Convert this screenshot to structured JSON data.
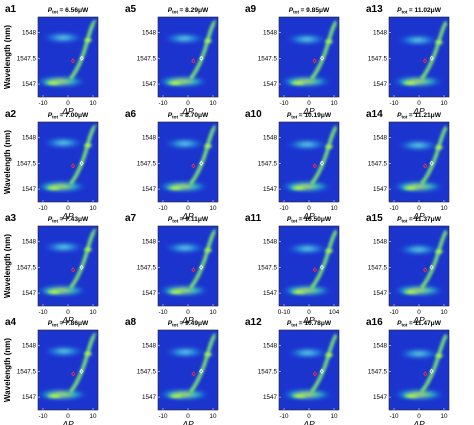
{
  "figure": {
    "common_ylabel": "Wavelength (nm)",
    "common_xlabel": "ΔP"
  },
  "chart_data": [
    {
      "type": "heatmap",
      "panel": "a1",
      "title_symbol": "P",
      "title_sub": "tot",
      "title_value": "= 6.56μW",
      "xlabel": "ΔP",
      "ylabel": "Wavelength (nm)",
      "xticks": [
        "-10",
        "0",
        "10"
      ],
      "yticks": [
        "1548",
        "1547.5",
        "1547"
      ],
      "ylim": [
        1546.75,
        1548.3
      ],
      "colormap": "jet-like (dark blue to yellow)",
      "colorbar": false
    },
    {
      "type": "heatmap",
      "panel": "a2",
      "title_symbol": "P",
      "title_sub": "tot",
      "title_value": "= 7.00μW",
      "xlabel": "ΔP",
      "ylabel": "Wavelength (nm)",
      "xticks": [
        "-10",
        "0",
        "10"
      ],
      "yticks": [
        "1548",
        "1547.5",
        "1547"
      ],
      "ylim": [
        1546.75,
        1548.3
      ],
      "colormap": "jet-like (dark blue to yellow)",
      "colorbar": false
    },
    {
      "type": "heatmap",
      "panel": "a3",
      "title_symbol": "P",
      "title_sub": "tot",
      "title_value": "= 7.43μW",
      "xlabel": "ΔP",
      "ylabel": "Wavelength (nm)",
      "xticks": [
        "-10",
        "0",
        "10"
      ],
      "yticks": [
        "1548",
        "1547.5",
        "1547"
      ],
      "ylim": [
        1546.75,
        1548.3
      ],
      "colormap": "jet-like (dark blue to yellow)",
      "colorbar": false
    },
    {
      "type": "heatmap",
      "panel": "a4",
      "title_symbol": "P",
      "title_sub": "tot",
      "title_value": "= 7.86μW",
      "xlabel": "ΔP",
      "ylabel": "Wavelength (nm)",
      "xticks": [
        "-10",
        "0",
        "10"
      ],
      "yticks": [
        "1548",
        "1547.5",
        "1547"
      ],
      "ylim": [
        1546.75,
        1548.3
      ],
      "colormap": "jet-like (dark blue to yellow)",
      "colorbar": false
    },
    {
      "type": "heatmap",
      "panel": "a5",
      "title_symbol": "P",
      "title_sub": "tot",
      "title_value": "= 8.29μW",
      "xlabel": "ΔP",
      "ylabel": "",
      "xticks": [
        "-10",
        "0",
        "10"
      ],
      "yticks": [
        "1548",
        "1547.5",
        "1547"
      ],
      "ylim": [
        1546.75,
        1548.3
      ],
      "colormap": "jet-like (dark blue to yellow)",
      "colorbar": false
    },
    {
      "type": "heatmap",
      "panel": "a6",
      "title_symbol": "P",
      "title_sub": "tot",
      "title_value": "= 8.70μW",
      "xlabel": "ΔP",
      "ylabel": "",
      "xticks": [
        "-10",
        "0",
        "10"
      ],
      "yticks": [
        "1548",
        "1547.5",
        "1547"
      ],
      "ylim": [
        1546.75,
        1548.3
      ],
      "colormap": "jet-like (dark blue to yellow)",
      "colorbar": false
    },
    {
      "type": "heatmap",
      "panel": "a7",
      "title_symbol": "P",
      "title_sub": "tot",
      "title_value": "= 9.11μW",
      "xlabel": "ΔP",
      "ylabel": "",
      "xticks": [
        "-10",
        "0",
        "10"
      ],
      "yticks": [
        "1548",
        "1547.5",
        "1547"
      ],
      "ylim": [
        1546.75,
        1548.3
      ],
      "colormap": "jet-like (dark blue to yellow)",
      "colorbar": false
    },
    {
      "type": "heatmap",
      "panel": "a8",
      "title_symbol": "P",
      "title_sub": "tot",
      "title_value": "= 9.49μW",
      "xlabel": "ΔP",
      "ylabel": "",
      "xticks": [
        "-10",
        "0",
        "10"
      ],
      "yticks": [
        "1548",
        "1547.5",
        "1547"
      ],
      "ylim": [
        1546.75,
        1548.3
      ],
      "colormap": "jet-like (dark blue to yellow)",
      "colorbar": false
    },
    {
      "type": "heatmap",
      "panel": "a9",
      "title_symbol": "P",
      "title_sub": "tot",
      "title_value": "= 9.85μW",
      "xlabel": "ΔP",
      "ylabel": "",
      "xticks": [
        "-10",
        "0",
        "10"
      ],
      "yticks": [
        "1548",
        "1547.5",
        "1547"
      ],
      "ylim": [
        1546.75,
        1548.3
      ],
      "colormap": "jet-like (dark blue to yellow)",
      "colorbar": false
    },
    {
      "type": "heatmap",
      "panel": "a10",
      "title_symbol": "P",
      "title_sub": "tot",
      "title_value": "= 10.19μW",
      "xlabel": "ΔP",
      "ylabel": "",
      "xticks": [
        "-10",
        "0",
        "10"
      ],
      "yticks": [
        "1548",
        "1547.5",
        "1547"
      ],
      "ylim": [
        1546.75,
        1548.3
      ],
      "colormap": "jet-like (dark blue to yellow)",
      "colorbar": false
    },
    {
      "type": "heatmap",
      "panel": "a11",
      "title_symbol": "P",
      "title_sub": "tot",
      "title_value": "= 10.50μW",
      "xlabel": "ΔP",
      "ylabel": "",
      "xticks": [
        "0-10",
        "0",
        "104"
      ],
      "yticks": [
        "1548",
        "1547.5",
        "1547"
      ],
      "ylim": [
        1546.75,
        1548.3
      ],
      "colormap": "jet-like (dark blue to yellow)",
      "colorbar": false
    },
    {
      "type": "heatmap",
      "panel": "a12",
      "title_symbol": "P",
      "title_sub": "tot",
      "title_value": "= 10.78μW",
      "xlabel": "ΔP",
      "ylabel": "",
      "xticks": [
        "-10",
        "0",
        "10"
      ],
      "yticks": [
        "1548",
        "1547.5",
        "1547"
      ],
      "ylim": [
        1546.75,
        1548.3
      ],
      "colormap": "jet-like (dark blue to yellow)",
      "colorbar": false
    },
    {
      "type": "heatmap",
      "panel": "a13",
      "title_symbol": "P",
      "title_sub": "tot",
      "title_value": "= 11.02μW",
      "xlabel": "ΔP",
      "ylabel": "",
      "xticks": [
        "-10",
        "0",
        "10"
      ],
      "yticks": [
        "1548",
        "1547.5",
        "1547"
      ],
      "ylim": [
        1546.75,
        1548.3
      ],
      "colormap": "jet-like (dark blue to yellow)",
      "colorbar": false
    },
    {
      "type": "heatmap",
      "panel": "a14",
      "title_symbol": "P",
      "title_sub": "tot",
      "title_value": "= 11.21μW",
      "xlabel": "ΔP",
      "ylabel": "",
      "xticks": [
        "-10",
        "0",
        "10"
      ],
      "yticks": [
        "1548",
        "1547.5",
        "1547"
      ],
      "ylim": [
        1546.75,
        1548.3
      ],
      "colormap": "jet-like (dark blue to yellow)",
      "colorbar": false
    },
    {
      "type": "heatmap",
      "panel": "a15",
      "title_symbol": "P",
      "title_sub": "tot",
      "title_value": "= 11.37μW",
      "xlabel": "ΔP",
      "ylabel": "",
      "xticks": [
        "-10",
        "0",
        "10"
      ],
      "yticks": [
        "1548",
        "1547.5",
        "1547"
      ],
      "ylim": [
        1546.75,
        1548.3
      ],
      "colormap": "jet-like (dark blue to yellow)",
      "colorbar": false
    },
    {
      "type": "heatmap",
      "panel": "a16",
      "title_symbol": "P",
      "title_sub": "tot",
      "title_value": "= 11.47μW",
      "xlabel": "ΔP",
      "ylabel": "",
      "xticks": [
        "-10",
        "0",
        "10"
      ],
      "yticks": [
        "1548",
        "1547.5",
        "1547"
      ],
      "ylim": [
        1546.75,
        1548.3
      ],
      "colormap": "jet-like (dark blue to yellow)",
      "colorbar": false
    }
  ]
}
